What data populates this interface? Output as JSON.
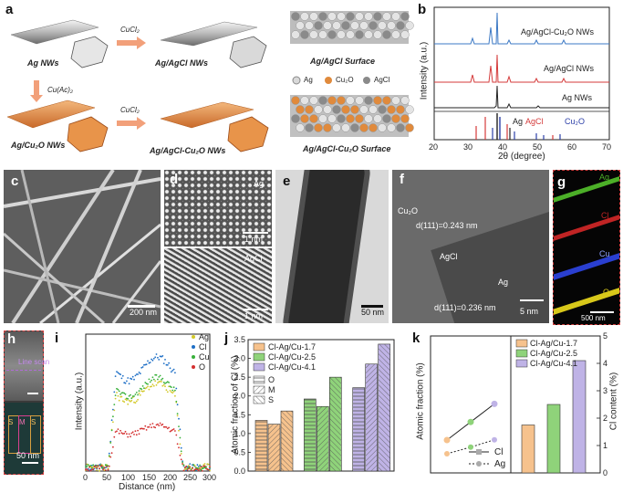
{
  "panel_a": {
    "label": "a",
    "ag_nws": "Ag NWs",
    "ag_agcl_nws": "Ag/AgCl NWs",
    "ag_agcl_surface": "Ag/AgCl Surface",
    "ag_cu2o_nws": "Ag/Cu₂O NWs",
    "ag_agcl_cu2o_nws": "Ag/AgCl-Cu₂O NWs",
    "ag_agcl_cu2o_surface": "Ag/AgCl-Cu₂O Surface",
    "reagent_cucl2_top": "CuCl₂",
    "reagent_cuac": "Cu(Ac)₂",
    "reagent_cucl2_bottom": "CuCl₂",
    "legend_ag": "Ag",
    "legend_cu2o": "Cu₂O",
    "legend_agcl": "AgCl",
    "colors": {
      "ag": "#cfcfcf",
      "cu2o": "#e08a3c",
      "agcl": "#8a8a8a",
      "arrow": "#f2a07a"
    }
  },
  "panel_b": {
    "label": "b",
    "ylabel": "Intensity (a.u.)",
    "xlabel": "2θ (degree)",
    "xticks": [
      "20",
      "30",
      "40",
      "50",
      "60",
      "70"
    ],
    "traces": [
      "Ag/AgCl-Cu₂O NWs",
      "Ag/AgCl NWs",
      "Ag NWs"
    ],
    "ref_labels": {
      "ag": "Ag",
      "agcl": "AgCl",
      "cu2o": "Cu₂O"
    },
    "colors": {
      "blue": "#3b78c4",
      "red": "#d43a3a",
      "black": "#222222",
      "agcl": "#d43a3a",
      "cu2o": "#2c3fa8"
    }
  },
  "panel_c": {
    "label": "c",
    "scale": "200 nm"
  },
  "panel_d": {
    "label": "d",
    "top_label": "Ag",
    "bottom_label": "AgCl",
    "scale_top": "1 nm",
    "scale_bottom": "1 nm"
  },
  "panel_e": {
    "label": "e",
    "scale": "50 nm"
  },
  "panel_f": {
    "label": "f",
    "cu2o": "Cu₂O",
    "d_cu2o": "d(111)=0.243 nm",
    "agcl": "AgCl",
    "ag": "Ag",
    "d_ag": "d(111)=0.236 nm",
    "scale": "5 nm"
  },
  "panel_g": {
    "label": "g",
    "maps": [
      "Ag",
      "Cl",
      "Cu",
      "O"
    ],
    "scale": "500 nm",
    "colors": [
      "#4caf28",
      "#c02424",
      "#2a3fd0",
      "#d8c81a"
    ]
  },
  "panel_h": {
    "label": "h",
    "line_scan": "Line scan",
    "regions": [
      "S",
      "M",
      "S"
    ],
    "scale": "50 nm"
  },
  "panel_i": {
    "label": "i",
    "ylabel": "Intensity (a.u.)",
    "xlabel": "Distance (nm)",
    "xticks": [
      "0",
      "50",
      "100",
      "150",
      "200",
      "250",
      "300"
    ],
    "legend": [
      "Ag",
      "Cl",
      "Cu",
      "O"
    ],
    "colors": [
      "#d3c92a",
      "#1e6fc6",
      "#38b03a",
      "#d43030"
    ]
  },
  "panel_j": {
    "label": "j"
  },
  "panel_k": {
    "label": "k",
    "ylabel_left": "Atomic fraction (%)",
    "ylabel_right": "Cl content (%)",
    "legend_lines": [
      "Cl",
      "Ag"
    ]
  },
  "chart_data": [
    {
      "type": "bar",
      "panel": "j",
      "title": "",
      "xlabel": "",
      "ylabel": "Atomic fraction of Cl (%)",
      "ylim": [
        0,
        3.5
      ],
      "yticks": [
        "0.0",
        "0.5",
        "1.0",
        "1.5",
        "2.0",
        "2.5",
        "3.0",
        "3.5"
      ],
      "categories": [
        "Cl-Ag/Cu-1.7",
        "Cl-Ag/Cu-2.5",
        "Cl-Ag/Cu-4.1"
      ],
      "legend_samples": [
        "Cl-Ag/Cu-1.7",
        "Cl-Ag/Cu-2.5",
        "Cl-Ag/Cu-4.1"
      ],
      "legend_patterns": [
        "O",
        "M",
        "S"
      ],
      "colors": [
        "#f6c28d",
        "#8fd37a",
        "#bfb3e6"
      ],
      "series": [
        {
          "name": "O",
          "values": [
            1.35,
            1.92,
            2.22
          ]
        },
        {
          "name": "M",
          "values": [
            1.25,
            1.72,
            2.85
          ]
        },
        {
          "name": "S",
          "values": [
            1.6,
            2.5,
            3.38
          ]
        }
      ]
    },
    {
      "type": "line",
      "panel": "k",
      "ylabel": "Atomic fraction (%)",
      "legend": [
        "Cl-Ag/Cu-1.7",
        "Cl-Ag/Cu-2.5",
        "Cl-Ag/Cu-4.1"
      ],
      "series": [
        {
          "name": "Cl",
          "values": [
            2.0,
            3.1,
            4.2
          ]
        },
        {
          "name": "Ag",
          "values": [
            0.5,
            0.9,
            1.35
          ]
        }
      ]
    },
    {
      "type": "bar",
      "panel": "k",
      "ylabel": "Cl content (%)",
      "ylim": [
        0,
        5
      ],
      "yticks": [
        "0",
        "1",
        "2",
        "3",
        "4",
        "5"
      ],
      "categories": [
        "Cl-Ag/Cu-1.7",
        "Cl-Ag/Cu-2.5",
        "Cl-Ag/Cu-4.1"
      ],
      "values": [
        1.75,
        2.5,
        4.1
      ],
      "colors": [
        "#f6c28d",
        "#8fd37a",
        "#bfb3e6"
      ]
    }
  ]
}
